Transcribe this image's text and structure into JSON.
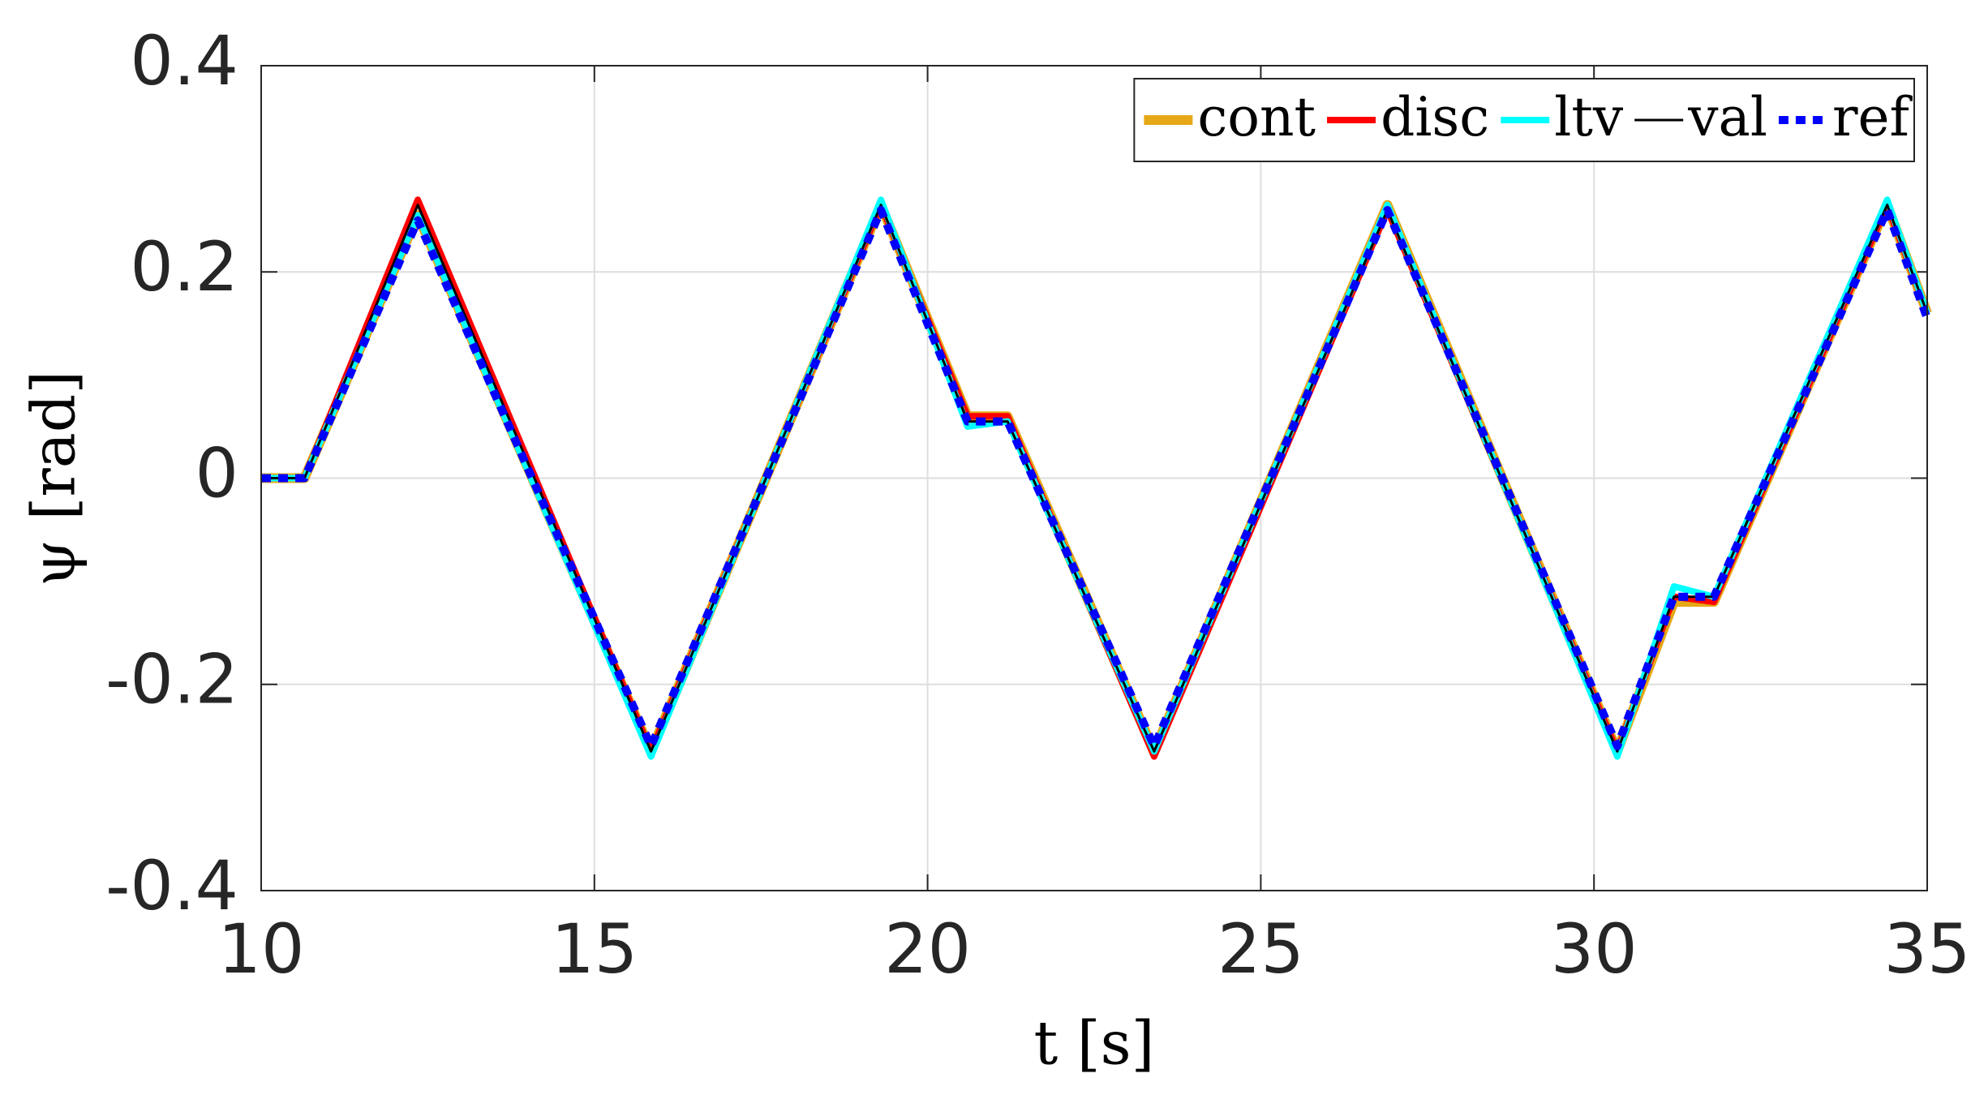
{
  "chart_data": {
    "type": "line",
    "xlabel": "t [s]",
    "ylabel": "ψ [rad]",
    "x": [
      10,
      10.65,
      12.35,
      15.85,
      19.3,
      20.6,
      21.2,
      23.4,
      26.9,
      30.35,
      31.2,
      31.8,
      34.4,
      35
    ],
    "series": [
      {
        "name": "cont",
        "color": "#e6a817",
        "values": [
          0,
          0,
          0.255,
          -0.265,
          0.265,
          0.06,
          0.06,
          -0.265,
          0.265,
          -0.265,
          -0.12,
          -0.12,
          0.265,
          0.16
        ]
      },
      {
        "name": "disc",
        "color": "#ff0000",
        "values": [
          0,
          0,
          0.27,
          -0.265,
          0.265,
          0.06,
          0.06,
          -0.27,
          0.26,
          -0.265,
          -0.115,
          -0.12,
          0.265,
          0.16
        ]
      },
      {
        "name": "ltv",
        "color": "#00ffff",
        "values": [
          0,
          0,
          0.255,
          -0.27,
          0.27,
          0.05,
          0.055,
          -0.265,
          0.265,
          -0.27,
          -0.105,
          -0.115,
          0.27,
          0.16
        ]
      },
      {
        "name": "val",
        "color": "#000000",
        "values": [
          0,
          0,
          0.265,
          -0.265,
          0.265,
          0.055,
          0.055,
          -0.265,
          0.26,
          -0.265,
          -0.115,
          -0.115,
          0.265,
          0.16
        ]
      },
      {
        "name": "ref",
        "color": "#0000ff",
        "values": [
          0,
          0,
          0.25,
          -0.26,
          0.26,
          0.055,
          0.055,
          -0.26,
          0.26,
          -0.26,
          -0.115,
          -0.115,
          0.26,
          0.155
        ]
      }
    ],
    "xlim": [
      10,
      35
    ],
    "xticks": [
      10,
      15,
      20,
      25,
      30,
      35
    ],
    "ylim": [
      -0.4,
      0.4
    ],
    "yticks": [
      -0.4,
      -0.2,
      0,
      0.2,
      0.4
    ],
    "grid": true,
    "legend": "northeast"
  }
}
